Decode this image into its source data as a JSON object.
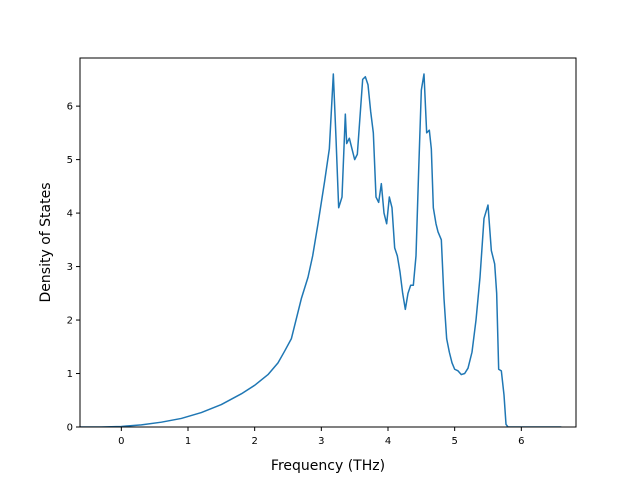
{
  "chart_data": {
    "type": "line",
    "title": "",
    "xlabel": "Frequency (THz)",
    "ylabel": "Density of States",
    "xlim": [
      -0.62,
      6.82
    ],
    "ylim": [
      0,
      6.9
    ],
    "xticks": [
      0,
      1,
      2,
      3,
      4,
      5,
      6
    ],
    "yticks": [
      0,
      1,
      2,
      3,
      4,
      5,
      6
    ],
    "grid": false,
    "legend": "none",
    "line_color": "#1f77b4",
    "series": [
      {
        "x": [
          -0.62,
          -0.3,
          0.0,
          0.3,
          0.6,
          0.9,
          1.2,
          1.5,
          1.8,
          2.0,
          2.2,
          2.35,
          2.45,
          2.55,
          2.7,
          2.8,
          2.87,
          2.95,
          3.05,
          3.12,
          3.18,
          3.22,
          3.26,
          3.31,
          3.36,
          3.38,
          3.42,
          3.46,
          3.5,
          3.54,
          3.58,
          3.62,
          3.66,
          3.7,
          3.74,
          3.78,
          3.82,
          3.86,
          3.9,
          3.94,
          3.98,
          4.02,
          4.06,
          4.1,
          4.14,
          4.18,
          4.22,
          4.26,
          4.3,
          4.34,
          4.38,
          4.42,
          4.46,
          4.5,
          4.54,
          4.58,
          4.62,
          4.65,
          4.68,
          4.72,
          4.75,
          4.8,
          4.84,
          4.88,
          4.92,
          4.96,
          5.0,
          5.05,
          5.1,
          5.15,
          5.2,
          5.26,
          5.32,
          5.38,
          5.44,
          5.5,
          5.55,
          5.6,
          5.63,
          5.66,
          5.7,
          5.74,
          5.77,
          5.8,
          5.84,
          5.88,
          5.92,
          5.96,
          6.0,
          6.3,
          6.6
        ],
        "y": [
          0,
          0,
          0.01,
          0.04,
          0.09,
          0.16,
          0.27,
          0.42,
          0.62,
          0.78,
          0.98,
          1.2,
          1.42,
          1.65,
          2.4,
          2.8,
          3.2,
          3.8,
          4.6,
          5.2,
          6.6,
          5.4,
          4.1,
          4.3,
          5.85,
          5.3,
          5.4,
          5.2,
          5.0,
          5.1,
          5.8,
          6.5,
          6.55,
          6.4,
          5.9,
          5.5,
          4.3,
          4.2,
          4.55,
          4.0,
          3.8,
          4.3,
          4.1,
          3.35,
          3.2,
          2.9,
          2.5,
          2.2,
          2.5,
          2.65,
          2.65,
          3.2,
          4.8,
          6.3,
          6.6,
          5.5,
          5.55,
          5.2,
          4.1,
          3.8,
          3.65,
          3.5,
          2.4,
          1.65,
          1.4,
          1.2,
          1.08,
          1.05,
          0.98,
          1.0,
          1.1,
          1.4,
          2.0,
          2.8,
          3.9,
          4.15,
          3.3,
          3.05,
          2.5,
          1.08,
          1.05,
          0.6,
          0.05,
          0,
          0,
          0,
          0,
          0,
          0,
          0,
          0
        ]
      }
    ]
  }
}
